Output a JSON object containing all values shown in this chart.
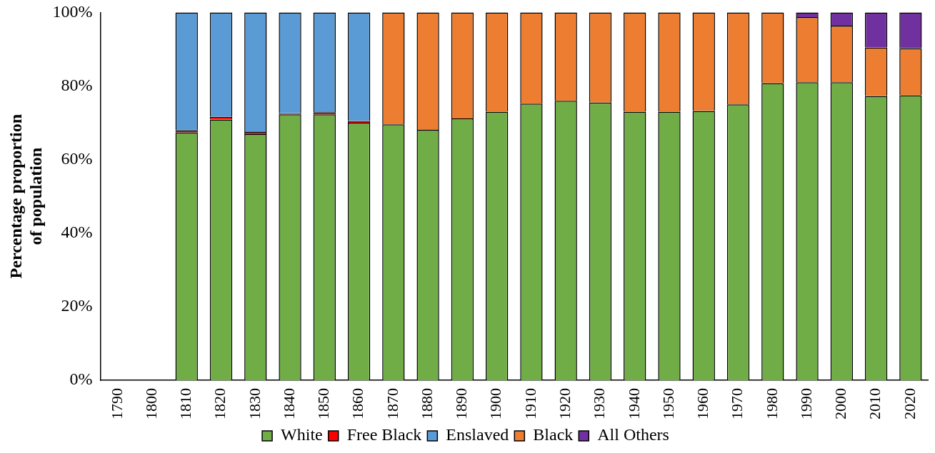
{
  "chart_data": {
    "type": "bar",
    "stacked": true,
    "ylabel": "Percentage proportion of population",
    "categories": [
      "1790",
      "1800",
      "1810",
      "1820",
      "1830",
      "1840",
      "1850",
      "1860",
      "1870",
      "1880",
      "1890",
      "1900",
      "1910",
      "1920",
      "1930",
      "1940",
      "1950",
      "1960",
      "1970",
      "1980",
      "1990",
      "2000",
      "2010",
      "2020"
    ],
    "series": [
      {
        "name": "White",
        "color": "#70ad47",
        "values": [
          null,
          null,
          67.4,
          70.9,
          66.9,
          72.3,
          72.3,
          70.0,
          69.6,
          68.1,
          71.2,
          73.0,
          75.2,
          76.0,
          75.5,
          73.0,
          73.0,
          73.2,
          75.0,
          80.8,
          81.0,
          81.0,
          77.3,
          77.5
        ]
      },
      {
        "name": "Free Black",
        "color": "#ff0000",
        "values": [
          null,
          null,
          0.6,
          0.7,
          0.6,
          0.3,
          0.6,
          0.5,
          null,
          null,
          null,
          null,
          null,
          null,
          null,
          null,
          null,
          null,
          null,
          null,
          null,
          null,
          null,
          null
        ]
      },
      {
        "name": "Enslaved",
        "color": "#5b9bd5",
        "values": [
          null,
          null,
          32.0,
          28.4,
          32.5,
          27.4,
          27.1,
          29.5,
          null,
          null,
          null,
          null,
          null,
          null,
          null,
          null,
          null,
          null,
          null,
          null,
          null,
          null,
          null,
          null
        ]
      },
      {
        "name": "Black",
        "color": "#ed7d31",
        "values": [
          null,
          null,
          null,
          null,
          null,
          null,
          null,
          null,
          30.4,
          31.9,
          28.8,
          27.0,
          24.8,
          24.0,
          24.5,
          27.0,
          27.0,
          26.8,
          25.0,
          19.2,
          17.7,
          15.4,
          13.2,
          12.8
        ]
      },
      {
        "name": "All Others",
        "color": "#7030a0",
        "values": [
          null,
          null,
          null,
          null,
          null,
          null,
          null,
          null,
          null,
          null,
          null,
          null,
          null,
          null,
          null,
          null,
          null,
          null,
          null,
          null,
          1.3,
          3.6,
          9.5,
          9.7
        ]
      }
    ],
    "ylim": [
      0,
      100
    ],
    "yticks": [
      {
        "value": 0,
        "label": "0%"
      },
      {
        "value": 20,
        "label": "20%"
      },
      {
        "value": 40,
        "label": "40%"
      },
      {
        "value": 60,
        "label": "60%"
      },
      {
        "value": 80,
        "label": "80%"
      },
      {
        "value": 100,
        "label": "100%"
      }
    ],
    "grid": false,
    "legend": "bottom"
  }
}
